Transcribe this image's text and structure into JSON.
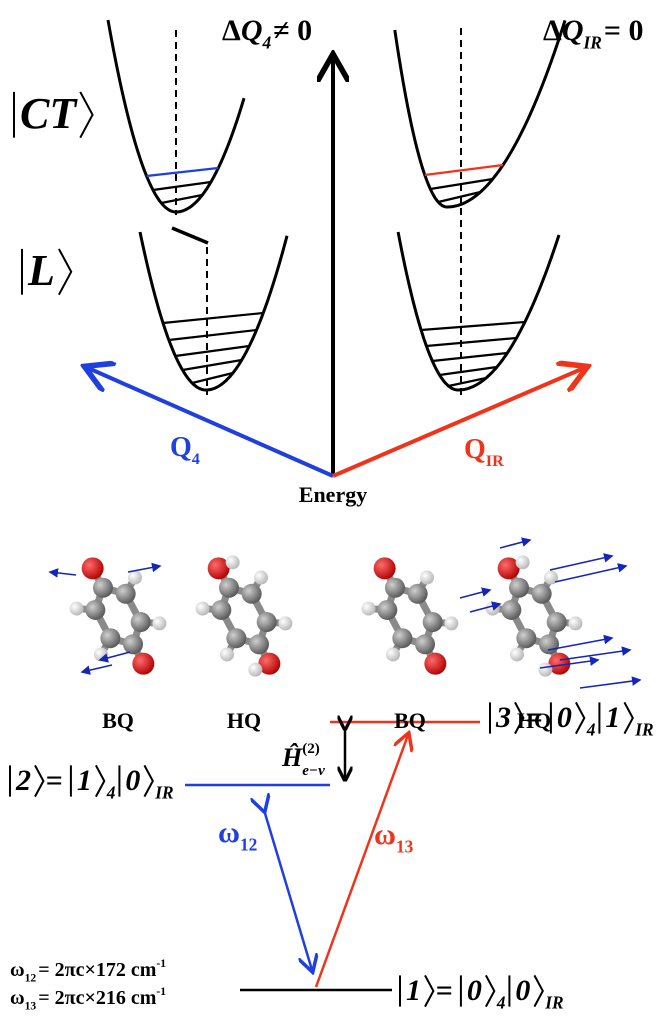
{
  "top": {
    "delta_q4": {
      "delta": "Δ",
      "symbol": "Q",
      "sub": "4",
      "relation": "≠ 0"
    },
    "delta_qir": {
      "delta": "Δ",
      "symbol": "Q",
      "sub": "IR",
      "relation": "= 0"
    },
    "state_ct": "CT",
    "state_l": "L",
    "axis_q4": {
      "symbol": "Q",
      "sub": "4"
    },
    "axis_qir": {
      "symbol": "Q",
      "sub": "IR"
    },
    "axis_energy": "Energy"
  },
  "molecules": [
    "BQ",
    "HQ",
    "BQ",
    "HQ"
  ],
  "levels": {
    "level3": {
      "ket": "3",
      "equals": "=",
      "rhs": [
        {
          "ket": "0",
          "sub": "4"
        },
        {
          "ket": "1",
          "sub": "IR"
        }
      ]
    },
    "level2": {
      "ket": "2",
      "equals": "=",
      "rhs": [
        {
          "ket": "1",
          "sub": "4"
        },
        {
          "ket": "0",
          "sub": "IR"
        }
      ]
    },
    "level1": {
      "ket": "1",
      "equals": "=",
      "rhs": [
        {
          "ket": "0",
          "sub": "4"
        },
        {
          "ket": "0",
          "sub": "IR"
        }
      ]
    }
  },
  "coupling": {
    "symbol": "Ĥ",
    "sup": "(2)",
    "sub": "e−v"
  },
  "transitions": [
    {
      "symbol": "ω",
      "sub": "12"
    },
    {
      "symbol": "ω",
      "sub": "13"
    }
  ],
  "frequencies": [
    {
      "symbol": "ω",
      "sub": "12",
      "equation": " = 2πc×172 cm",
      "sup": "-1"
    },
    {
      "symbol": "ω",
      "sub": "13",
      "equation": " = 2πc×216 cm",
      "sup": "-1"
    }
  ]
}
